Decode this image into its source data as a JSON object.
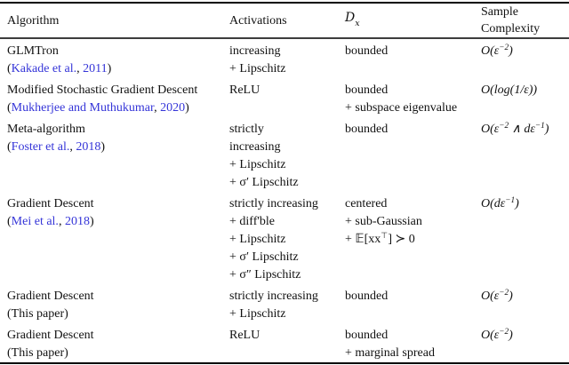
{
  "colors": {
    "link_blue": "#3535d8",
    "text": "#111111",
    "rule_heavy": "#000000",
    "rule_light": "#3c3c3c"
  },
  "table": {
    "header": {
      "algorithm": "Algorithm",
      "activations": "Activations",
      "distribution_letter": "D",
      "distribution_subscript": "x",
      "sample_line1": "Sample",
      "sample_line2": "Complexity"
    },
    "rows": [
      {
        "algorithm": "GLMTron",
        "citation": [
          {
            "t": "(",
            "link": false
          },
          {
            "t": "Kakade et al.",
            "link": true
          },
          {
            "t": ", ",
            "link": false
          },
          {
            "t": "2011",
            "link": true
          },
          {
            "t": ")",
            "link": false
          }
        ],
        "activations": [
          "increasing",
          "+ Lipschitz"
        ],
        "distribution": [
          "bounded"
        ],
        "sample_complexity": "O(ε^{−2})"
      },
      {
        "algorithm": "Modified Stochastic Gradient Descent",
        "citation": [
          {
            "t": "(",
            "link": false
          },
          {
            "t": "Mukherjee and Muthukumar",
            "link": true
          },
          {
            "t": ", ",
            "link": false
          },
          {
            "t": "2020",
            "link": true
          },
          {
            "t": ")",
            "link": false
          }
        ],
        "activations": [
          "ReLU"
        ],
        "distribution": [
          "bounded",
          "+ subspace eigenvalue"
        ],
        "sample_complexity": "O(log(1/ε))"
      },
      {
        "algorithm": "Meta-algorithm",
        "citation": [
          {
            "t": "(",
            "link": false
          },
          {
            "t": "Foster et al.",
            "link": true
          },
          {
            "t": ", ",
            "link": false
          },
          {
            "t": "2018",
            "link": true
          },
          {
            "t": ")",
            "link": false
          }
        ],
        "activations": [
          "strictly",
          "increasing",
          "+ Lipschitz",
          "+ σ′ Lipschitz"
        ],
        "distribution": [
          "bounded"
        ],
        "sample_complexity": "O(ε^{−2} ∧ dε^{−1})"
      },
      {
        "algorithm": "Gradient Descent",
        "citation": [
          {
            "t": "(",
            "link": false
          },
          {
            "t": "Mei et al.",
            "link": true
          },
          {
            "t": ", ",
            "link": false
          },
          {
            "t": "2018",
            "link": true
          },
          {
            "t": ")",
            "link": false
          }
        ],
        "activations": [
          "strictly increasing",
          "+ diff'ble",
          "+ Lipschitz",
          "+ σ′ Lipschitz",
          "+ σ″ Lipschitz"
        ],
        "distribution": [
          "centered",
          "+ sub-Gaussian",
          "+ 𝔼[xx^{⊤}] ≻ 0"
        ],
        "sample_complexity": "O(dε^{−1})"
      },
      {
        "algorithm": "Gradient Descent",
        "citation": [
          {
            "t": "(This paper)",
            "link": false
          }
        ],
        "activations": [
          "strictly increasing",
          "+ Lipschitz"
        ],
        "distribution": [
          "bounded"
        ],
        "sample_complexity": "O(ε^{−2})"
      },
      {
        "algorithm": "Gradient Descent",
        "citation": [
          {
            "t": "(This paper)",
            "link": false
          }
        ],
        "activations": [
          "ReLU"
        ],
        "distribution": [
          "bounded",
          "+ marginal spread"
        ],
        "sample_complexity": "O(ε^{−2})"
      }
    ]
  }
}
